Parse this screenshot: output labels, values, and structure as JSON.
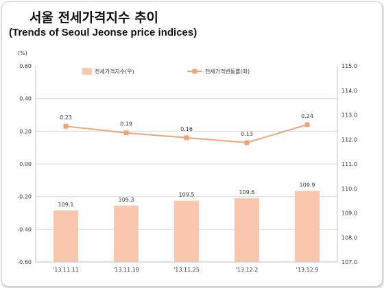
{
  "header": {
    "title": "서울 전세가격지수 추이",
    "subtitle": "(Trends of Seoul Jeonse price indices)"
  },
  "colors": {
    "bar": "#f8c7ad",
    "line": "#f0a474",
    "gridline": "#d9d9d9",
    "axis_text": "#333333"
  },
  "chart_data": {
    "type": "bar+line",
    "categories": [
      "'13.11.11",
      "'13.11.18",
      "'13.11.25",
      "'13.12.2",
      "'13.12.9"
    ],
    "left_axis_unit": "(%)",
    "left_ylim": [
      -0.6,
      0.6
    ],
    "left_ticks": [
      "0.60",
      "0.40",
      "0.20",
      "0.00",
      "-0.20",
      "-0.40",
      "-0.60"
    ],
    "right_ylim": [
      107.0,
      115.0
    ],
    "right_ticks": [
      "115.0",
      "114.0",
      "113.0",
      "112.0",
      "111.0",
      "110.0",
      "109.0",
      "108.0",
      "107.0"
    ],
    "grid": true,
    "legend_placement": "top",
    "series": [
      {
        "name": "전세가격지수(우)",
        "kind": "bar",
        "axis": "right",
        "values": [
          109.1,
          109.3,
          109.5,
          109.6,
          109.9
        ],
        "labels": [
          "109.1",
          "109.3",
          "109.5",
          "109.6",
          "109.9"
        ]
      },
      {
        "name": "전세가격변동률(좌)",
        "kind": "line",
        "axis": "left",
        "values": [
          0.23,
          0.19,
          0.16,
          0.13,
          0.24
        ],
        "labels": [
          "0.23",
          "0.19",
          "0.16",
          "0.13",
          "0.24"
        ]
      }
    ]
  }
}
